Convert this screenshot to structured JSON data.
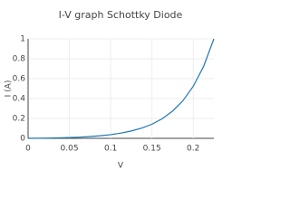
{
  "chart_data": {
    "type": "line",
    "title": "I-V graph Schottky Diode",
    "x_label": "V",
    "y_label": "I (A)",
    "x": [
      0,
      0.0125,
      0.025,
      0.0375,
      0.05,
      0.0625,
      0.075,
      0.0875,
      0.1,
      0.1125,
      0.125,
      0.1375,
      0.15,
      0.1625,
      0.175,
      0.1875,
      0.2,
      0.2125,
      0.225
    ],
    "series": [
      {
        "name": "I (A)",
        "color": "#1f77b4",
        "values": [
          0,
          0.001,
          0.003,
          0.005,
          0.008,
          0.012,
          0.018,
          0.026,
          0.037,
          0.053,
          0.074,
          0.103,
          0.142,
          0.198,
          0.274,
          0.378,
          0.523,
          0.722,
          1
        ]
      }
    ],
    "xlim": [
      0,
      0.225
    ],
    "ylim": [
      0,
      1
    ],
    "xticks": [
      0,
      0.05,
      0.1,
      0.15,
      0.2
    ],
    "yticks": [
      0,
      0.2,
      0.4,
      0.6,
      0.8,
      1
    ],
    "grid": true
  }
}
